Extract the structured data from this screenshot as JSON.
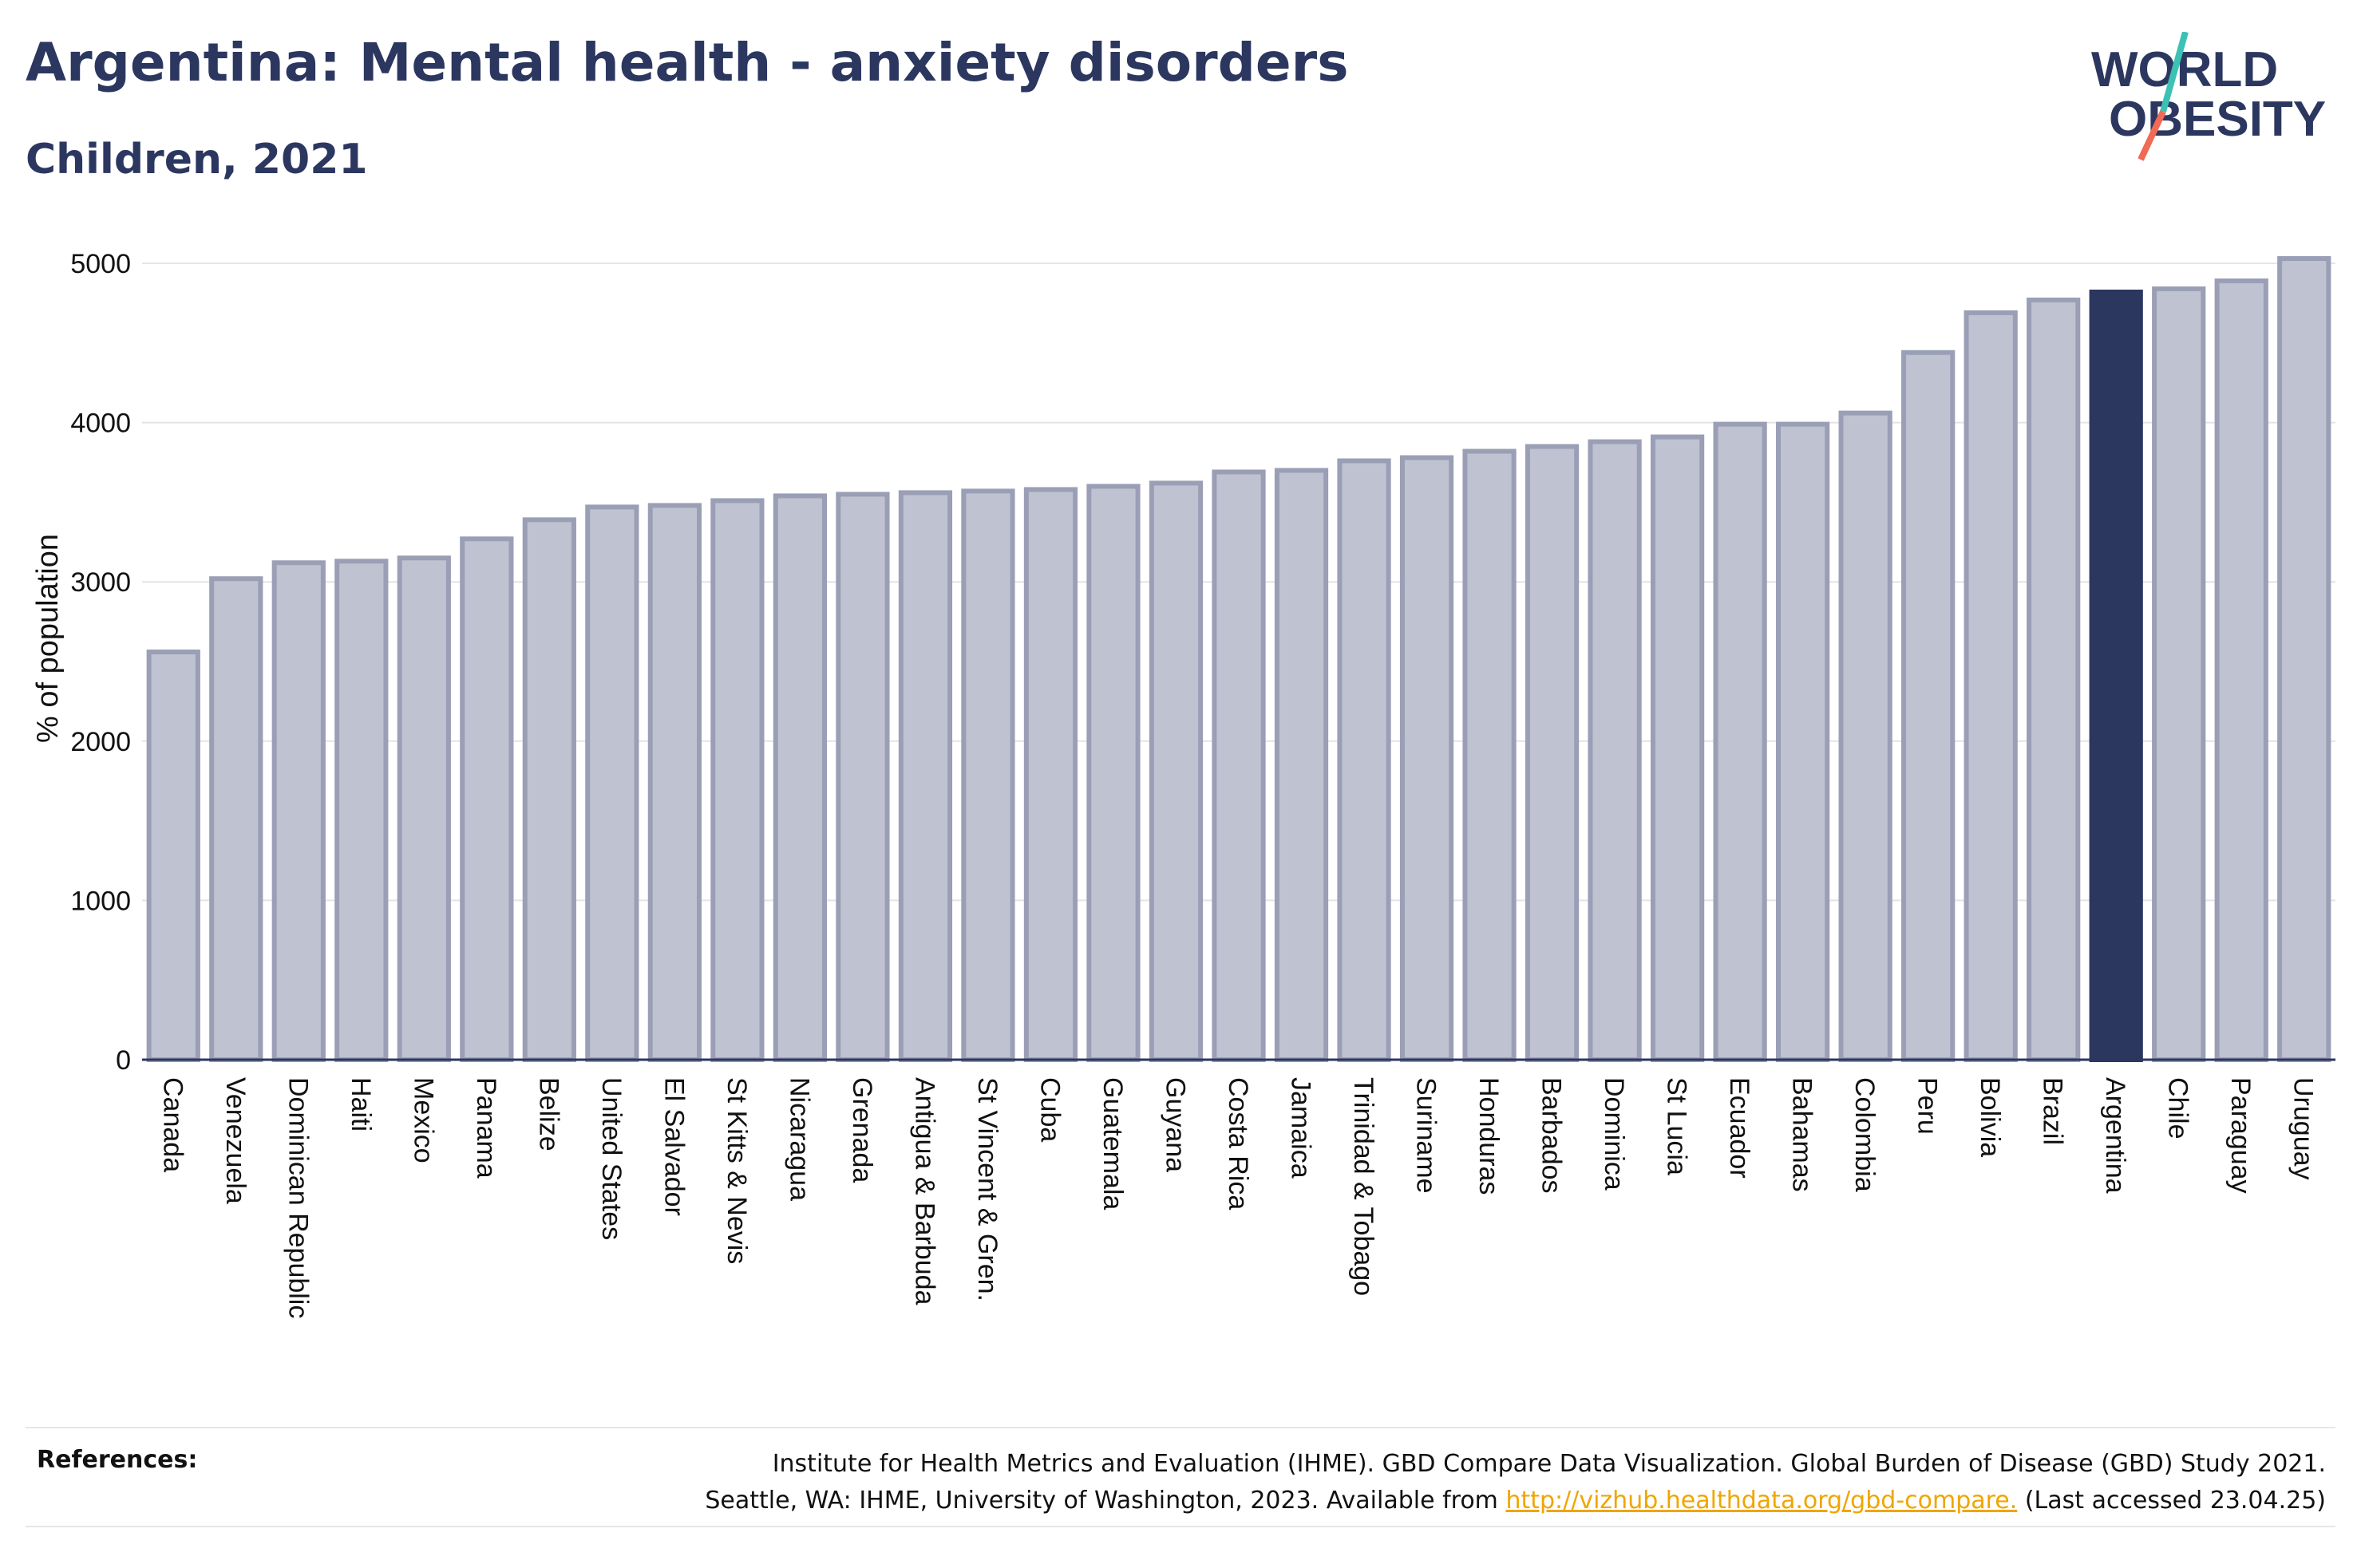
{
  "header": {
    "title": "Argentina: Mental health - anxiety disorders",
    "subtitle": "Children, 2021"
  },
  "logo": {
    "line1": "WORLD",
    "line2": "OBESITY",
    "colors": {
      "text": "#2c3760",
      "slash_top": "#3cc1b5",
      "slash_bottom": "#f06a55"
    }
  },
  "colors": {
    "bar_fill": "#bfc2d0",
    "bar_stroke": "#9a9fb6",
    "highlight": "#2c3760",
    "grid": "#e4e4e8",
    "axis": "#2c3760"
  },
  "chart_data": {
    "type": "bar",
    "ylabel": "% of population",
    "ylim": [
      0,
      5000
    ],
    "yticks": [
      0,
      1000,
      2000,
      3000,
      4000,
      5000
    ],
    "grid": true,
    "highlight": "Argentina",
    "categories": [
      "Canada",
      "Venezuela",
      "Dominican Republic",
      "Haiti",
      "Mexico",
      "Panama",
      "Belize",
      "United States",
      "El Salvador",
      "St Kitts & Nevis",
      "Nicaragua",
      "Grenada",
      "Antigua & Barbuda",
      "St Vincent & Gren.",
      "Cuba",
      "Guatemala",
      "Guyana",
      "Costa Rica",
      "Jamaica",
      "Trinidad & Tobago",
      "Suriname",
      "Honduras",
      "Barbados",
      "Dominica",
      "St Lucia",
      "Ecuador",
      "Bahamas",
      "Colombia",
      "Peru",
      "Bolivia",
      "Brazil",
      "Argentina",
      "Chile",
      "Paraguay",
      "Uruguay"
    ],
    "values": [
      2560,
      3020,
      3120,
      3130,
      3150,
      3270,
      3390,
      3470,
      3480,
      3510,
      3540,
      3550,
      3560,
      3570,
      3580,
      3600,
      3620,
      3690,
      3700,
      3760,
      3780,
      3820,
      3850,
      3880,
      3910,
      3990,
      3990,
      4060,
      4440,
      4690,
      4770,
      4820,
      4840,
      4890,
      5030
    ]
  },
  "references": {
    "label": "References:",
    "line1": "Institute for Health Metrics and Evaluation (IHME). GBD Compare Data Visualization. Global Burden of Disease (GBD) Study 2021.",
    "line2_prefix": "Seattle, WA: IHME, University of Washington, 2023. Available from ",
    "link": "http://vizhub.healthdata.org/gbd-compare.",
    "line2_suffix": " (Last accessed 23.04.25)"
  }
}
